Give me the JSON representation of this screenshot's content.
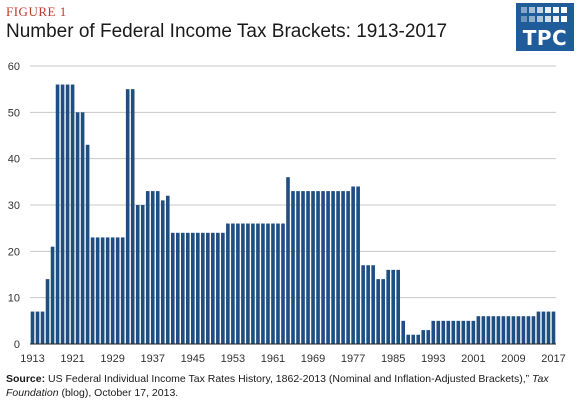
{
  "figure_label": "FIGURE 1",
  "title": "Number of Federal Income Tax Brackets: 1913-2017",
  "logo": {
    "text": "TPC",
    "background": "#1f5c99"
  },
  "source": {
    "label": "Source:",
    "text": "US Federal Individual Income Tax Rates History, 1862-2013 (Nominal and Inflation-Adjusted Brackets),”",
    "publication": "Tax Foundation",
    "suffix": "(blog), October 17, 2013."
  },
  "colors": {
    "bar": "#1f4e82",
    "grid": "#c8c8c8",
    "title_accent": "#c0392b"
  },
  "chart_data": {
    "type": "bar",
    "title": "Number of Federal Income Tax Brackets: 1913-2017",
    "xlabel": "",
    "ylabel": "",
    "ylim": [
      0,
      60
    ],
    "yticks": [
      "0",
      "10",
      "20",
      "30",
      "40",
      "50",
      "60"
    ],
    "xticks": [
      "1913",
      "1921",
      "1929",
      "1937",
      "1945",
      "1953",
      "1961",
      "1969",
      "1977",
      "1985",
      "1993",
      "2001",
      "2009",
      "2017"
    ],
    "grid": true,
    "categories": [
      1913,
      1914,
      1915,
      1916,
      1917,
      1918,
      1919,
      1920,
      1921,
      1922,
      1923,
      1924,
      1925,
      1926,
      1927,
      1928,
      1929,
      1930,
      1931,
      1932,
      1933,
      1934,
      1935,
      1936,
      1937,
      1938,
      1939,
      1940,
      1941,
      1942,
      1943,
      1944,
      1945,
      1946,
      1947,
      1948,
      1949,
      1950,
      1951,
      1952,
      1953,
      1954,
      1955,
      1956,
      1957,
      1958,
      1959,
      1960,
      1961,
      1962,
      1963,
      1964,
      1965,
      1966,
      1967,
      1968,
      1969,
      1970,
      1971,
      1972,
      1973,
      1974,
      1975,
      1976,
      1977,
      1978,
      1979,
      1980,
      1981,
      1982,
      1983,
      1984,
      1985,
      1986,
      1987,
      1988,
      1989,
      1990,
      1991,
      1992,
      1993,
      1994,
      1995,
      1996,
      1997,
      1998,
      1999,
      2000,
      2001,
      2002,
      2003,
      2004,
      2005,
      2006,
      2007,
      2008,
      2009,
      2010,
      2011,
      2012,
      2013,
      2014,
      2015,
      2016,
      2017
    ],
    "values": [
      7,
      7,
      7,
      14,
      21,
      56,
      56,
      56,
      56,
      50,
      50,
      43,
      23,
      23,
      23,
      23,
      23,
      23,
      23,
      55,
      55,
      30,
      30,
      33,
      33,
      33,
      31,
      32,
      24,
      24,
      24,
      24,
      24,
      24,
      24,
      24,
      24,
      24,
      24,
      26,
      26,
      26,
      26,
      26,
      26,
      26,
      26,
      26,
      26,
      26,
      26,
      36,
      33,
      33,
      33,
      33,
      33,
      33,
      33,
      33,
      33,
      33,
      33,
      33,
      34,
      34,
      17,
      17,
      17,
      14,
      14,
      16,
      16,
      16,
      5,
      2,
      2,
      2,
      3,
      3,
      5,
      5,
      5,
      5,
      5,
      5,
      5,
      5,
      5,
      6,
      6,
      6,
      6,
      6,
      6,
      6,
      6,
      6,
      6,
      6,
      6,
      7,
      7,
      7,
      7
    ]
  }
}
